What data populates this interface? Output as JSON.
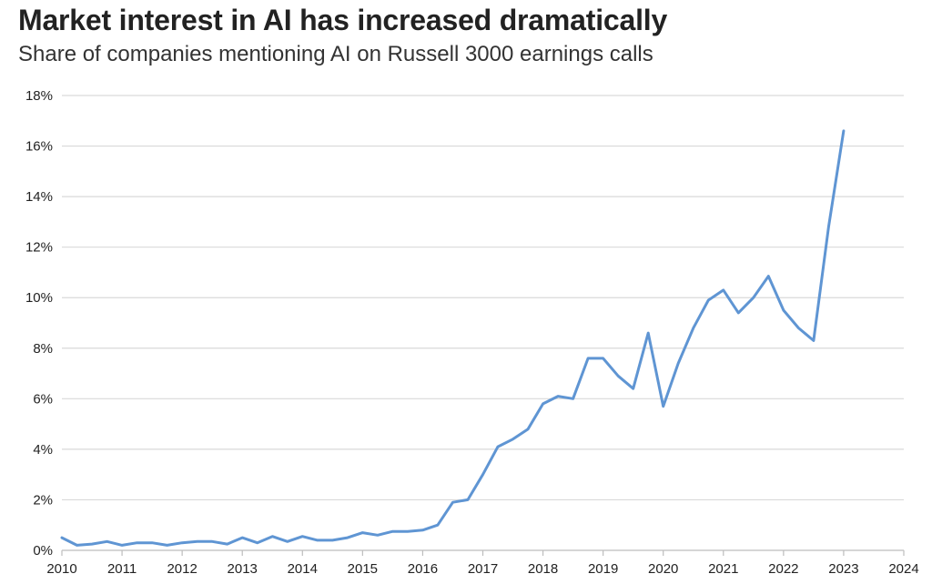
{
  "colors": {
    "line": "#5f95d3",
    "grid": "#d9d9d9",
    "axis": "#bdbdbd",
    "text": "#222222"
  },
  "chart_data": {
    "type": "line",
    "title": "Market interest in AI has increased dramatically",
    "subtitle": "Share of companies mentioning AI on Russell 3000 earnings calls",
    "xlabel": "",
    "ylabel": "",
    "xlim": [
      2010,
      2024
    ],
    "ylim": [
      0,
      18
    ],
    "grid": true,
    "x_ticks": [
      2010,
      2011,
      2012,
      2013,
      2014,
      2015,
      2016,
      2017,
      2018,
      2019,
      2020,
      2021,
      2022,
      2023,
      2024
    ],
    "x_tick_labels": [
      "2010",
      "2011",
      "2012",
      "2013",
      "2014",
      "2015",
      "2016",
      "2017",
      "2018",
      "2019",
      "2020",
      "2021",
      "2022",
      "2023",
      "2024"
    ],
    "y_ticks": [
      0,
      2,
      4,
      6,
      8,
      10,
      12,
      14,
      16,
      18
    ],
    "y_tick_labels": [
      "0%",
      "2%",
      "4%",
      "6%",
      "8%",
      "10%",
      "12%",
      "14%",
      "16%",
      "18%"
    ],
    "series": [
      {
        "x": [
          2010.0,
          2010.25,
          2010.5,
          2010.75,
          2011.0,
          2011.25,
          2011.5,
          2011.75,
          2012.0,
          2012.25,
          2012.5,
          2012.75,
          2013.0,
          2013.25,
          2013.5,
          2013.75,
          2014.0,
          2014.25,
          2014.5,
          2014.75,
          2015.0,
          2015.25,
          2015.5,
          2015.75,
          2016.0,
          2016.25,
          2016.5,
          2016.75,
          2017.0,
          2017.25,
          2017.5,
          2017.75,
          2018.0,
          2018.25,
          2018.5,
          2018.75,
          2019.0,
          2019.25,
          2019.5,
          2019.75,
          2020.0,
          2020.25,
          2020.5,
          2020.75,
          2021.0,
          2021.25,
          2021.5,
          2021.75,
          2022.0,
          2022.25,
          2022.5,
          2022.75,
          2023.0
        ],
        "values": [
          0.5,
          0.2,
          0.25,
          0.35,
          0.2,
          0.3,
          0.3,
          0.2,
          0.3,
          0.35,
          0.35,
          0.25,
          0.5,
          0.3,
          0.55,
          0.35,
          0.55,
          0.4,
          0.4,
          0.5,
          0.7,
          0.6,
          0.75,
          0.75,
          0.8,
          1.0,
          1.9,
          2.0,
          3.0,
          4.1,
          4.4,
          4.8,
          5.8,
          6.1,
          6.0,
          7.6,
          7.6,
          6.9,
          6.4,
          8.6,
          5.7,
          7.4,
          8.8,
          9.9,
          10.3,
          9.4,
          10.0,
          10.85,
          9.5,
          8.8,
          8.3,
          12.8,
          16.6
        ]
      }
    ]
  }
}
